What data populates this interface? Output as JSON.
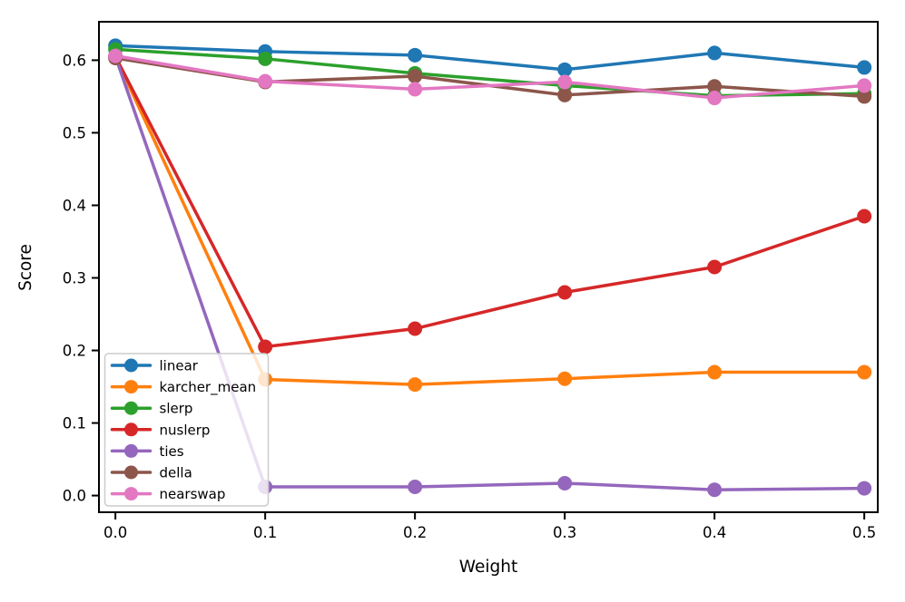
{
  "figure": {
    "background": "#ffffff",
    "axis_color": "#000000"
  },
  "chart_data": {
    "type": "line",
    "title": "",
    "xlabel": "Weight",
    "ylabel": "Score",
    "x": [
      0.0,
      0.1,
      0.2,
      0.3,
      0.4,
      0.5
    ],
    "x_tick_labels": [
      "0.0",
      "0.1",
      "0.2",
      "0.3",
      "0.4",
      "0.5"
    ],
    "y_ticks": [
      0.0,
      0.1,
      0.2,
      0.3,
      0.4,
      0.5,
      0.6
    ],
    "y_tick_labels": [
      "0.0",
      "0.1",
      "0.2",
      "0.3",
      "0.4",
      "0.5",
      "0.6"
    ],
    "xlim": [
      -0.011,
      0.509
    ],
    "ylim": [
      -0.023,
      0.653
    ],
    "grid": false,
    "marker": "circle",
    "legend_position": "lower-left",
    "legend_background": "rgba(255,255,255,0.8)",
    "legend_border_color": "#cccccc",
    "series": [
      {
        "name": "linear",
        "color": "#1f77b4",
        "values": [
          0.62,
          0.612,
          0.607,
          0.587,
          0.61,
          0.59
        ]
      },
      {
        "name": "karcher_mean",
        "color": "#ff7f0e",
        "values": [
          0.605,
          0.16,
          0.153,
          0.161,
          0.17,
          0.17
        ]
      },
      {
        "name": "slerp",
        "color": "#2ca02c",
        "values": [
          0.615,
          0.602,
          0.582,
          0.565,
          0.551,
          0.554
        ]
      },
      {
        "name": "nuslerp",
        "color": "#d62728",
        "values": [
          0.605,
          0.205,
          0.23,
          0.28,
          0.315,
          0.385
        ]
      },
      {
        "name": "ties",
        "color": "#9467bd",
        "values": [
          0.605,
          0.012,
          0.012,
          0.017,
          0.008,
          0.01
        ]
      },
      {
        "name": "della",
        "color": "#8c564b",
        "values": [
          0.603,
          0.57,
          0.578,
          0.552,
          0.564,
          0.55
        ]
      },
      {
        "name": "nearswap",
        "color": "#e377c2",
        "values": [
          0.606,
          0.571,
          0.56,
          0.57,
          0.548,
          0.565
        ]
      }
    ]
  }
}
